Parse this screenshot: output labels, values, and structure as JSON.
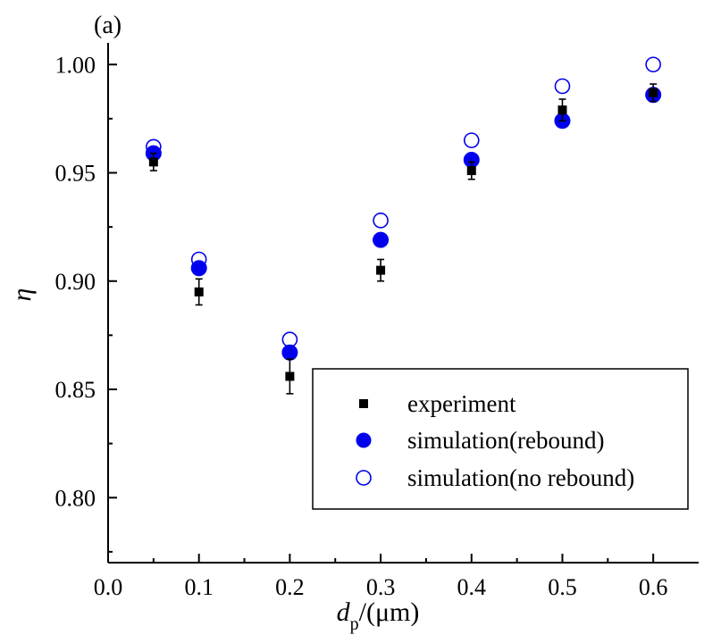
{
  "chart_data": {
    "type": "scatter",
    "panel_label": "(a)",
    "xlabel": {
      "main": "d",
      "sub": "p",
      "suffix": "/(μm)"
    },
    "ylabel": "η",
    "xlim": [
      0.0,
      0.65
    ],
    "ylim": [
      0.77,
      1.01
    ],
    "x_ticks": [
      "0.0",
      "0.1",
      "0.2",
      "0.3",
      "0.4",
      "0.5",
      "0.6"
    ],
    "y_ticks": [
      "0.80",
      "0.85",
      "0.90",
      "0.95",
      "1.00"
    ],
    "x_tick_values": [
      0.0,
      0.1,
      0.2,
      0.3,
      0.4,
      0.5,
      0.6
    ],
    "y_tick_values": [
      0.8,
      0.85,
      0.9,
      0.95,
      1.0
    ],
    "grid": false,
    "legend_placement": "bottom-right",
    "series": [
      {
        "name": "experiment",
        "marker": "square",
        "color": "#000000",
        "x": [
          0.05,
          0.1,
          0.2,
          0.3,
          0.4,
          0.5,
          0.6
        ],
        "y": [
          0.955,
          0.895,
          0.856,
          0.905,
          0.951,
          0.979,
          0.987
        ],
        "yerr": [
          0.004,
          0.006,
          0.008,
          0.005,
          0.004,
          0.005,
          0.004
        ]
      },
      {
        "name": "simulation(rebound)",
        "marker": "filled-circle",
        "color": "#0000ee",
        "x": [
          0.05,
          0.1,
          0.2,
          0.3,
          0.4,
          0.5,
          0.6
        ],
        "y": [
          0.959,
          0.906,
          0.867,
          0.919,
          0.956,
          0.974,
          0.986
        ]
      },
      {
        "name": "simulation(no rebound)",
        "marker": "open-circle",
        "color": "#0000ee",
        "x": [
          0.05,
          0.1,
          0.2,
          0.3,
          0.4,
          0.5,
          0.6
        ],
        "y": [
          0.962,
          0.91,
          0.873,
          0.928,
          0.965,
          0.99,
          1.0
        ]
      }
    ]
  }
}
